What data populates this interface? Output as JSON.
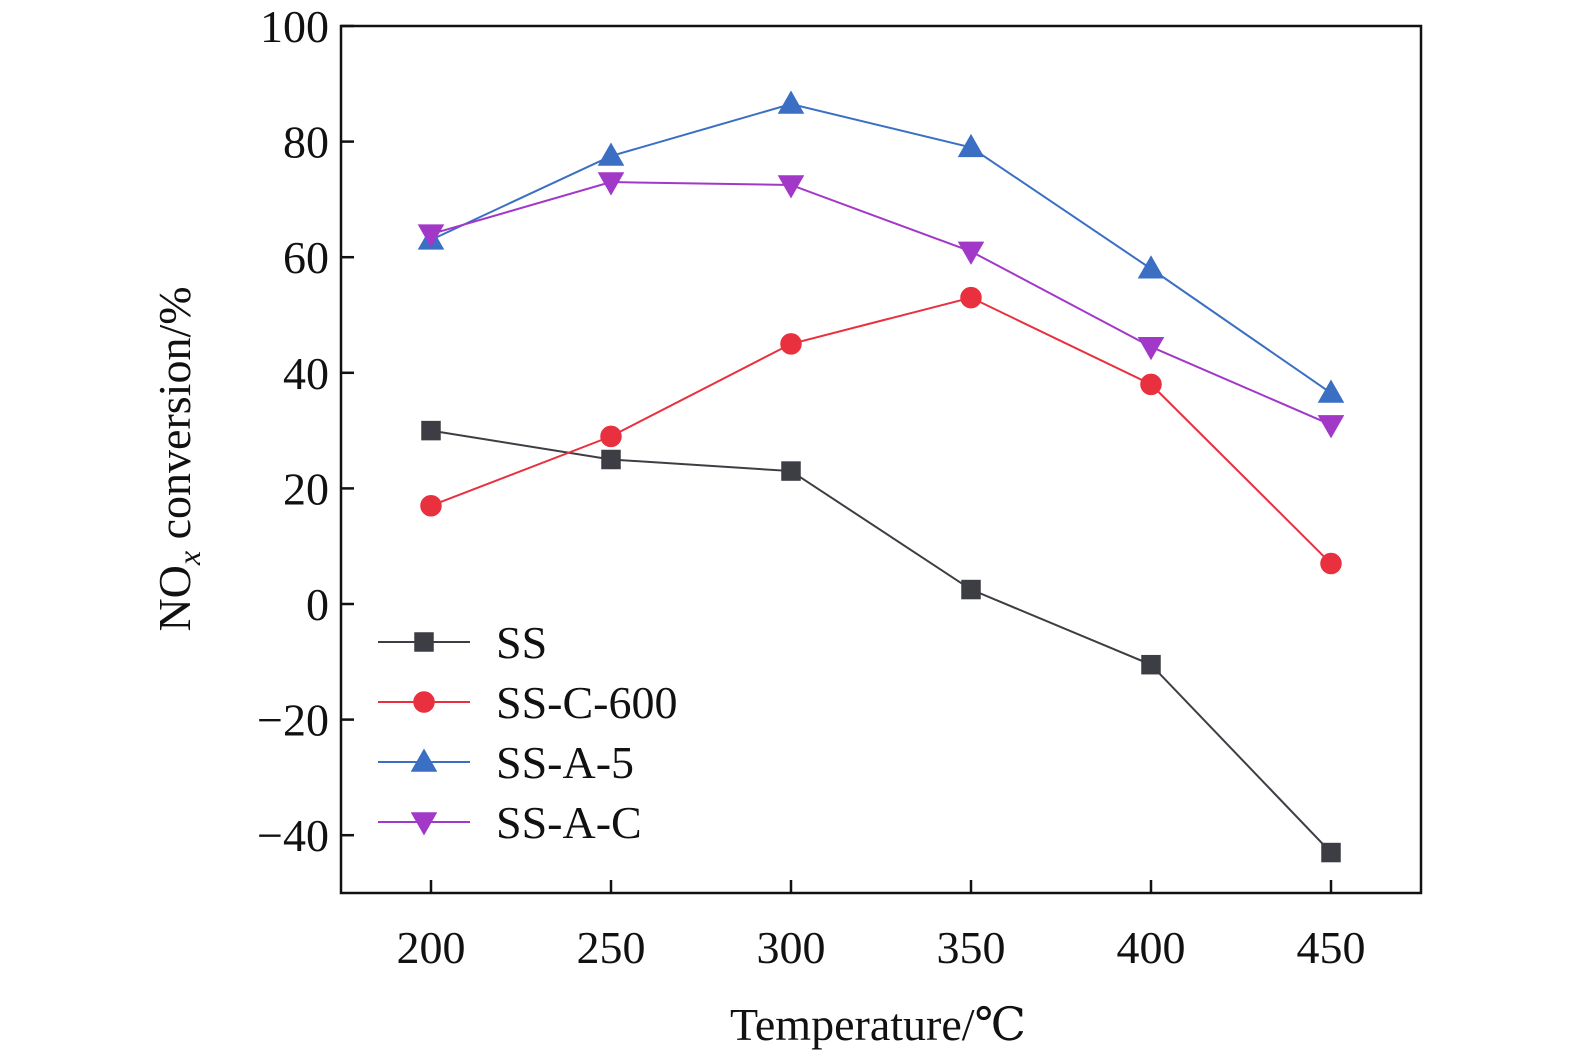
{
  "chart_data": {
    "type": "line",
    "x": [
      200,
      250,
      300,
      350,
      400,
      450
    ],
    "xlabel": "Temperature/℃",
    "ylabel_main": "NO",
    "ylabel_sub": "x",
    "ylabel_rest": " conversion/%",
    "xlim": [
      175,
      475
    ],
    "ylim": [
      -50,
      100
    ],
    "xticks": [
      200,
      250,
      300,
      350,
      400,
      450
    ],
    "yticks": [
      -40,
      -20,
      0,
      20,
      40,
      60,
      80,
      100
    ],
    "ytick_labels": [
      "−40",
      "−20",
      "0",
      "20",
      "40",
      "60",
      "80",
      "100"
    ],
    "grid": false,
    "legend_position": "bottom-left",
    "series": [
      {
        "name": "SS",
        "color": "#3d3d44",
        "marker": "square",
        "values": [
          30,
          25,
          23,
          2.5,
          -10.5,
          -43
        ]
      },
      {
        "name": "SS-C-600",
        "color": "#e8303f",
        "marker": "circle",
        "values": [
          17,
          29,
          45,
          53,
          38,
          7
        ]
      },
      {
        "name": "SS-A-5",
        "color": "#3a6fc4",
        "marker": "triangle-up",
        "values": [
          63,
          77.5,
          86.5,
          79,
          58,
          36.5
        ]
      },
      {
        "name": "SS-A-C",
        "color": "#a238c8",
        "marker": "triangle-down",
        "values": [
          64,
          73,
          72.5,
          61,
          44.5,
          31
        ]
      }
    ]
  }
}
